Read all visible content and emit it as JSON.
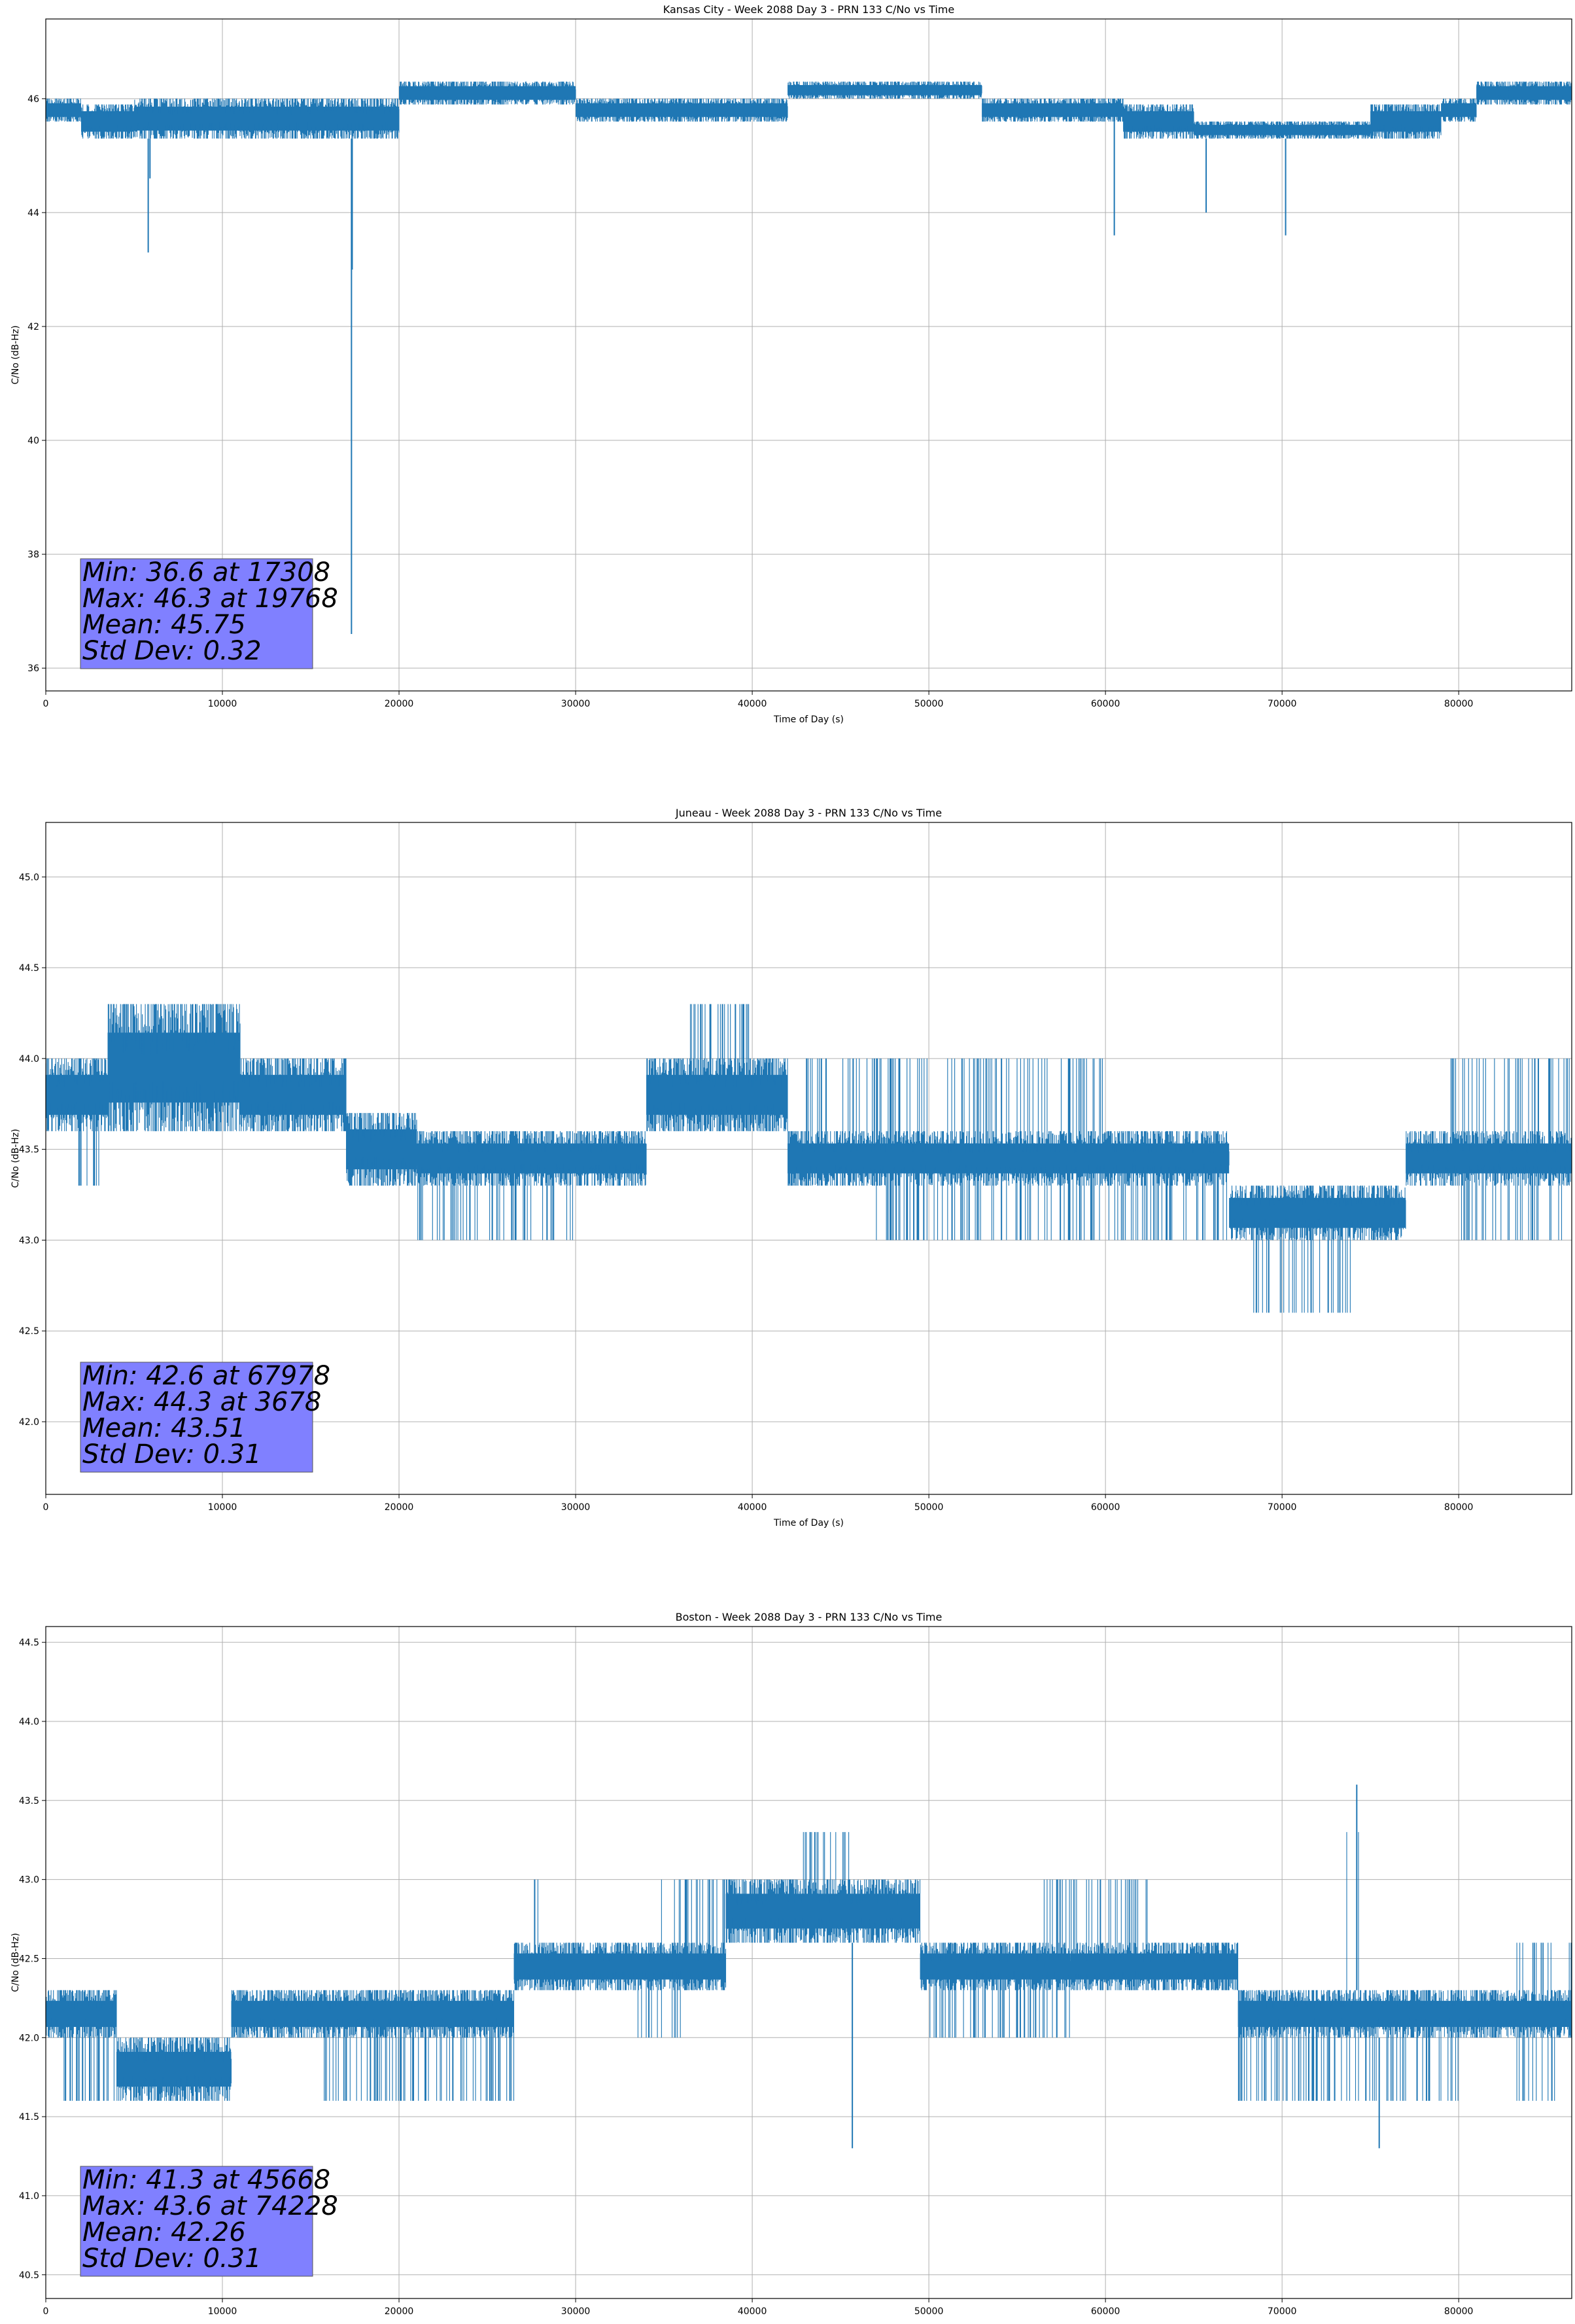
{
  "chart_data": [
    {
      "type": "line",
      "title": "Kansas City - Week 2088 Day 3 - PRN 133 C/No vs Time",
      "xlabel": "Time of Day (s)",
      "ylabel": "C/No (dB-Hz)",
      "xlim": [
        0,
        86400
      ],
      "ylim": [
        35.6,
        47.4
      ],
      "xticks": [
        0,
        10000,
        20000,
        30000,
        40000,
        50000,
        60000,
        70000,
        80000
      ],
      "xtick_labels": [
        "0",
        "10000",
        "20000",
        "30000",
        "40000",
        "50000",
        "60000",
        "70000",
        "80000"
      ],
      "yticks": [
        36,
        38,
        40,
        42,
        44,
        46
      ],
      "ytick_labels": [
        "36",
        "38",
        "40",
        "42",
        "44",
        "46"
      ],
      "grid": true,
      "color": "#1f77b4",
      "series": [
        {
          "segments": [
            {
              "x": [
                0,
                2000
              ],
              "low": 45.6,
              "high": 46.0
            },
            {
              "x": [
                2000,
                5000
              ],
              "low": 45.3,
              "high": 45.9
            },
            {
              "x": [
                5000,
                20000
              ],
              "low": 45.3,
              "high": 46.0
            },
            {
              "x": [
                20000,
                30000
              ],
              "low": 45.9,
              "high": 46.3
            },
            {
              "x": [
                30000,
                42000
              ],
              "low": 45.6,
              "high": 46.0
            },
            {
              "x": [
                42000,
                53000
              ],
              "low": 46.0,
              "high": 46.3
            },
            {
              "x": [
                53000,
                61000
              ],
              "low": 45.6,
              "high": 46.0
            },
            {
              "x": [
                61000,
                65000
              ],
              "low": 45.3,
              "high": 45.9
            },
            {
              "x": [
                65000,
                75000
              ],
              "low": 45.3,
              "high": 45.6
            },
            {
              "x": [
                75000,
                79000
              ],
              "low": 45.3,
              "high": 45.9
            },
            {
              "x": [
                79000,
                81000
              ],
              "low": 45.6,
              "high": 46.0
            },
            {
              "x": [
                81000,
                86400
              ],
              "low": 45.9,
              "high": 46.3
            }
          ],
          "spikes": [
            {
              "x": 5800,
              "y": 43.3
            },
            {
              "x": 5900,
              "y": 44.6
            },
            {
              "x": 17308,
              "y": 36.6
            },
            {
              "x": 17350,
              "y": 43.0
            },
            {
              "x": 60500,
              "y": 43.6
            },
            {
              "x": 65700,
              "y": 44.0
            },
            {
              "x": 70200,
              "y": 43.6
            }
          ]
        }
      ],
      "annotation": {
        "lines": [
          "Min: 36.6 at 17308",
          "Max: 46.3 at 19768",
          "Mean: 45.75",
          "Std Dev: 0.32"
        ],
        "background": "#8080ff"
      }
    },
    {
      "type": "line",
      "title": "Juneau - Week 2088 Day 3 - PRN 133 C/No vs Time",
      "xlabel": "Time of Day (s)",
      "ylabel": "C/No (dB-Hz)",
      "xlim": [
        0,
        86400
      ],
      "ylim": [
        41.6,
        45.3
      ],
      "xticks": [
        0,
        10000,
        20000,
        30000,
        40000,
        50000,
        60000,
        70000,
        80000
      ],
      "xtick_labels": [
        "0",
        "10000",
        "20000",
        "30000",
        "40000",
        "50000",
        "60000",
        "70000",
        "80000"
      ],
      "yticks": [
        42.0,
        42.5,
        43.0,
        43.5,
        44.0,
        44.5,
        45.0
      ],
      "ytick_labels": [
        "42.0",
        "42.5",
        "43.0",
        "43.5",
        "44.0",
        "44.5",
        "45.0"
      ],
      "grid": true,
      "color": "#1f77b4",
      "series": [
        {
          "segments": [
            {
              "x": [
                0,
                3500
              ],
              "low": 43.6,
              "high": 44.0
            },
            {
              "x": [
                3500,
                11000
              ],
              "low": 43.6,
              "high": 44.3
            },
            {
              "x": [
                11000,
                17000
              ],
              "low": 43.6,
              "high": 44.0
            },
            {
              "x": [
                17000,
                21000
              ],
              "low": 43.3,
              "high": 43.7
            },
            {
              "x": [
                21000,
                26000
              ],
              "low": 43.3,
              "high": 43.6
            },
            {
              "x": [
                26000,
                34000
              ],
              "low": 43.3,
              "high": 43.6
            },
            {
              "x": [
                34000,
                42000
              ],
              "low": 43.6,
              "high": 44.0
            },
            {
              "x": [
                42000,
                67000
              ],
              "low": 43.3,
              "high": 43.6
            },
            {
              "x": [
                67000,
                77000
              ],
              "low": 43.0,
              "high": 43.3
            },
            {
              "x": [
                77000,
                86400
              ],
              "low": 43.3,
              "high": 43.6
            }
          ],
          "dips": [
            {
              "x": [
                1800,
                3000
              ],
              "low": 43.3
            },
            {
              "x": [
                21000,
                30000
              ],
              "low": 43.0
            },
            {
              "x": [
                47000,
                60000
              ],
              "low": 43.0
            },
            {
              "x": [
                60000,
                67000
              ],
              "low": 43.0
            },
            {
              "x": [
                68000,
                74000
              ],
              "low": 42.6
            },
            {
              "x": [
                80000,
                86000
              ],
              "low": 43.0
            }
          ],
          "peaks": [
            {
              "x": [
                36000,
                40000
              ],
              "high": 44.3
            },
            {
              "x": [
                79500,
                86400
              ],
              "high": 44.0
            },
            {
              "x": [
                43000,
                60000
              ],
              "high": 44.0
            }
          ]
        }
      ],
      "annotation": {
        "lines": [
          "Min: 42.6 at 67978",
          "Max: 44.3 at 3678",
          "Mean: 43.51",
          "Std Dev: 0.31"
        ],
        "background": "#8080ff"
      }
    },
    {
      "type": "line",
      "title": "Boston - Week 2088 Day 3 - PRN 133 C/No vs Time",
      "xlabel": "Time of Day (s)",
      "ylabel": "C/No (dB-Hz)",
      "xlim": [
        0,
        86400
      ],
      "ylim": [
        40.35,
        44.6
      ],
      "xticks": [
        0,
        10000,
        20000,
        30000,
        40000,
        50000,
        60000,
        70000,
        80000
      ],
      "xtick_labels": [
        "0",
        "10000",
        "20000",
        "30000",
        "40000",
        "50000",
        "60000",
        "70000",
        "80000"
      ],
      "yticks": [
        40.5,
        41.0,
        41.5,
        42.0,
        42.5,
        43.0,
        43.5,
        44.0,
        44.5
      ],
      "ytick_labels": [
        "40.5",
        "41.0",
        "41.5",
        "42.0",
        "42.5",
        "43.0",
        "43.5",
        "44.0",
        "44.5"
      ],
      "grid": true,
      "color": "#1f77b4",
      "series": [
        {
          "segments": [
            {
              "x": [
                0,
                4000
              ],
              "low": 42.0,
              "high": 42.3
            },
            {
              "x": [
                4000,
                10500
              ],
              "low": 41.6,
              "high": 42.0
            },
            {
              "x": [
                10500,
                26500
              ],
              "low": 42.0,
              "high": 42.3
            },
            {
              "x": [
                26500,
                38500
              ],
              "low": 42.3,
              "high": 42.6
            },
            {
              "x": [
                38500,
                49500
              ],
              "low": 42.6,
              "high": 43.0
            },
            {
              "x": [
                49500,
                58000
              ],
              "low": 42.3,
              "high": 42.6
            },
            {
              "x": [
                58000,
                67500
              ],
              "low": 42.3,
              "high": 42.6
            },
            {
              "x": [
                67500,
                86400
              ],
              "low": 42.0,
              "high": 42.3
            }
          ],
          "dips": [
            {
              "x": [
                1000,
                10500
              ],
              "low": 41.6
            },
            {
              "x": [
                15500,
                26500
              ],
              "low": 41.6
            },
            {
              "x": [
                33500,
                36000
              ],
              "low": 42.0
            },
            {
              "x": [
                50000,
                58000
              ],
              "low": 42.0
            },
            {
              "x": [
                67500,
                80000
              ],
              "low": 41.6
            },
            {
              "x": [
                83000,
                86000
              ],
              "low": 41.6
            }
          ],
          "peaks": [
            {
              "x": [
                27500,
                28000
              ],
              "high": 43.0
            },
            {
              "x": [
                34500,
                39500
              ],
              "high": 43.0
            },
            {
              "x": [
                42500,
                45800
              ],
              "high": 43.3
            },
            {
              "x": [
                56500,
                62500
              ],
              "high": 43.0
            },
            {
              "x": [
                73500,
                74500
              ],
              "high": 43.3
            },
            {
              "x": [
                83000,
                86400
              ],
              "high": 42.6
            }
          ],
          "spikes": [
            {
              "x": 45668,
              "y": 41.3
            },
            {
              "x": 74228,
              "y": 43.6
            },
            {
              "x": 75500,
              "y": 41.3
            }
          ]
        }
      ],
      "annotation": {
        "lines": [
          "Min: 41.3 at 45668",
          "Max: 43.6 at 74228",
          "Mean: 42.26",
          "Std Dev: 0.31"
        ],
        "background": "#8080ff"
      }
    }
  ]
}
